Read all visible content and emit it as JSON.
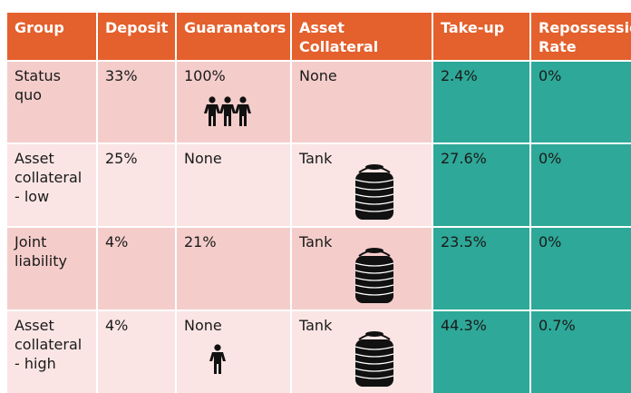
{
  "table": {
    "header": [
      "Group",
      "Deposit",
      "Guaranators",
      "Asset Collateral",
      "Take-up",
      "Repossession Rate"
    ],
    "rows": [
      [
        "Status quo",
        "33%",
        "100%",
        "None",
        "2.4%",
        "0%"
      ],
      [
        "Asset collateral - low",
        "25%",
        "None",
        "Tank",
        "27.6%",
        "0%"
      ],
      [
        "Joint liability",
        "4%",
        "21%",
        "Tank",
        "23.5%",
        "0%"
      ],
      [
        "Asset collateral - high",
        "4%",
        "None",
        "Tank",
        "44.3%",
        "0.7%"
      ]
    ]
  }
}
